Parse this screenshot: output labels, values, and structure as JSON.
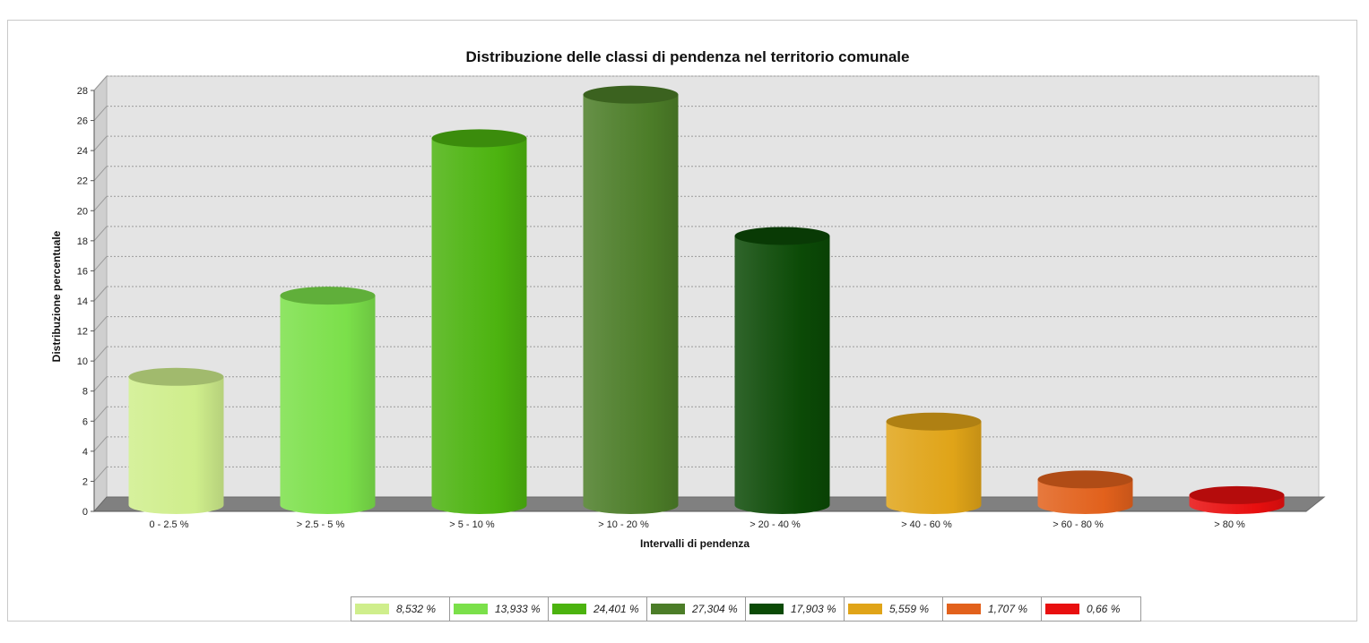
{
  "chart_data": {
    "type": "bar",
    "title": "Distribuzione delle classi di pendenza nel territorio comunale",
    "xlabel": "Intervalli di pendenza",
    "ylabel": "Distribuzione percentuale",
    "ylim": [
      0,
      28
    ],
    "yticks": [
      0,
      2,
      4,
      6,
      8,
      10,
      12,
      14,
      16,
      18,
      20,
      22,
      24,
      26,
      28
    ],
    "grid": true,
    "legend_position": "bottom",
    "categories": [
      "0 - 2.5 %",
      "> 2.5 - 5 %",
      "> 5 - 10 %",
      "> 10 - 20 %",
      "> 20 - 40 %",
      "> 40 - 60 %",
      "> 60 - 80 %",
      "> 80 %"
    ],
    "values": [
      8.532,
      13.933,
      24.401,
      27.304,
      17.903,
      5.559,
      1.707,
      0.66
    ],
    "colors": [
      "#cfee8c",
      "#7be04a",
      "#4cb30f",
      "#4c7d28",
      "#0b4a06",
      "#e0a418",
      "#e2611c",
      "#e80f0f"
    ],
    "legend": [
      "8,532 %",
      "13,933 %",
      "24,401 %",
      "27,304 %",
      "17,903 %",
      "5,559 %",
      "1,707 %",
      "0,66 %"
    ]
  }
}
